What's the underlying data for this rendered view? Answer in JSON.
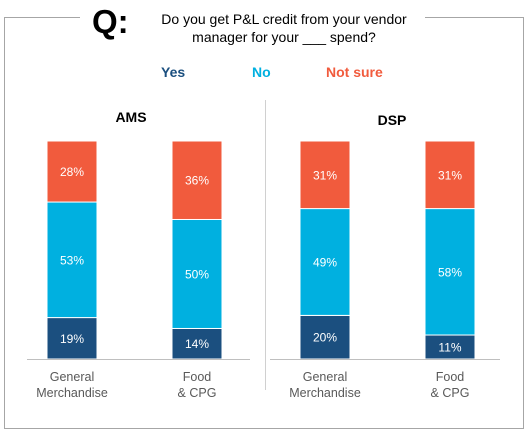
{
  "question": {
    "prefix": "Q:",
    "line1": "Do you get P&L credit from your vendor",
    "line2": "manager for your ___ spend?"
  },
  "legend": [
    {
      "label": "Yes",
      "color": "#1b4f7f"
    },
    {
      "label": "No",
      "color": "#00b0e0"
    },
    {
      "label": "Not sure",
      "color": "#f15b3d"
    }
  ],
  "chart_data": [
    {
      "type": "bar",
      "stacked": true,
      "title": "AMS",
      "categories": [
        [
          "General",
          "Merchandise"
        ],
        [
          "Food",
          "& CPG"
        ]
      ],
      "series": [
        {
          "name": "Yes",
          "values": [
            19,
            14
          ],
          "labels": [
            "19%",
            "14%"
          ],
          "color": "#1b4f7f"
        },
        {
          "name": "No",
          "values": [
            53,
            50
          ],
          "labels": [
            "53%",
            "50%"
          ],
          "color": "#00b0e0"
        },
        {
          "name": "Not sure",
          "values": [
            28,
            36
          ],
          "labels": [
            "28%",
            "36%"
          ],
          "color": "#f15b3d"
        }
      ],
      "ylim": [
        0,
        100
      ]
    },
    {
      "type": "bar",
      "stacked": true,
      "title": "DSP",
      "categories": [
        [
          "General",
          "Merchandise"
        ],
        [
          "Food",
          "& CPG"
        ]
      ],
      "series": [
        {
          "name": "Yes",
          "values": [
            20,
            11
          ],
          "labels": [
            "20%",
            "11%"
          ],
          "color": "#1b4f7f"
        },
        {
          "name": "No",
          "values": [
            49,
            58
          ],
          "labels": [
            "49%",
            "58%"
          ],
          "color": "#00b0e0"
        },
        {
          "name": "Not sure",
          "values": [
            31,
            31
          ],
          "labels": [
            "31%",
            "31%"
          ],
          "color": "#f15b3d"
        }
      ],
      "ylim": [
        0,
        100
      ]
    }
  ]
}
